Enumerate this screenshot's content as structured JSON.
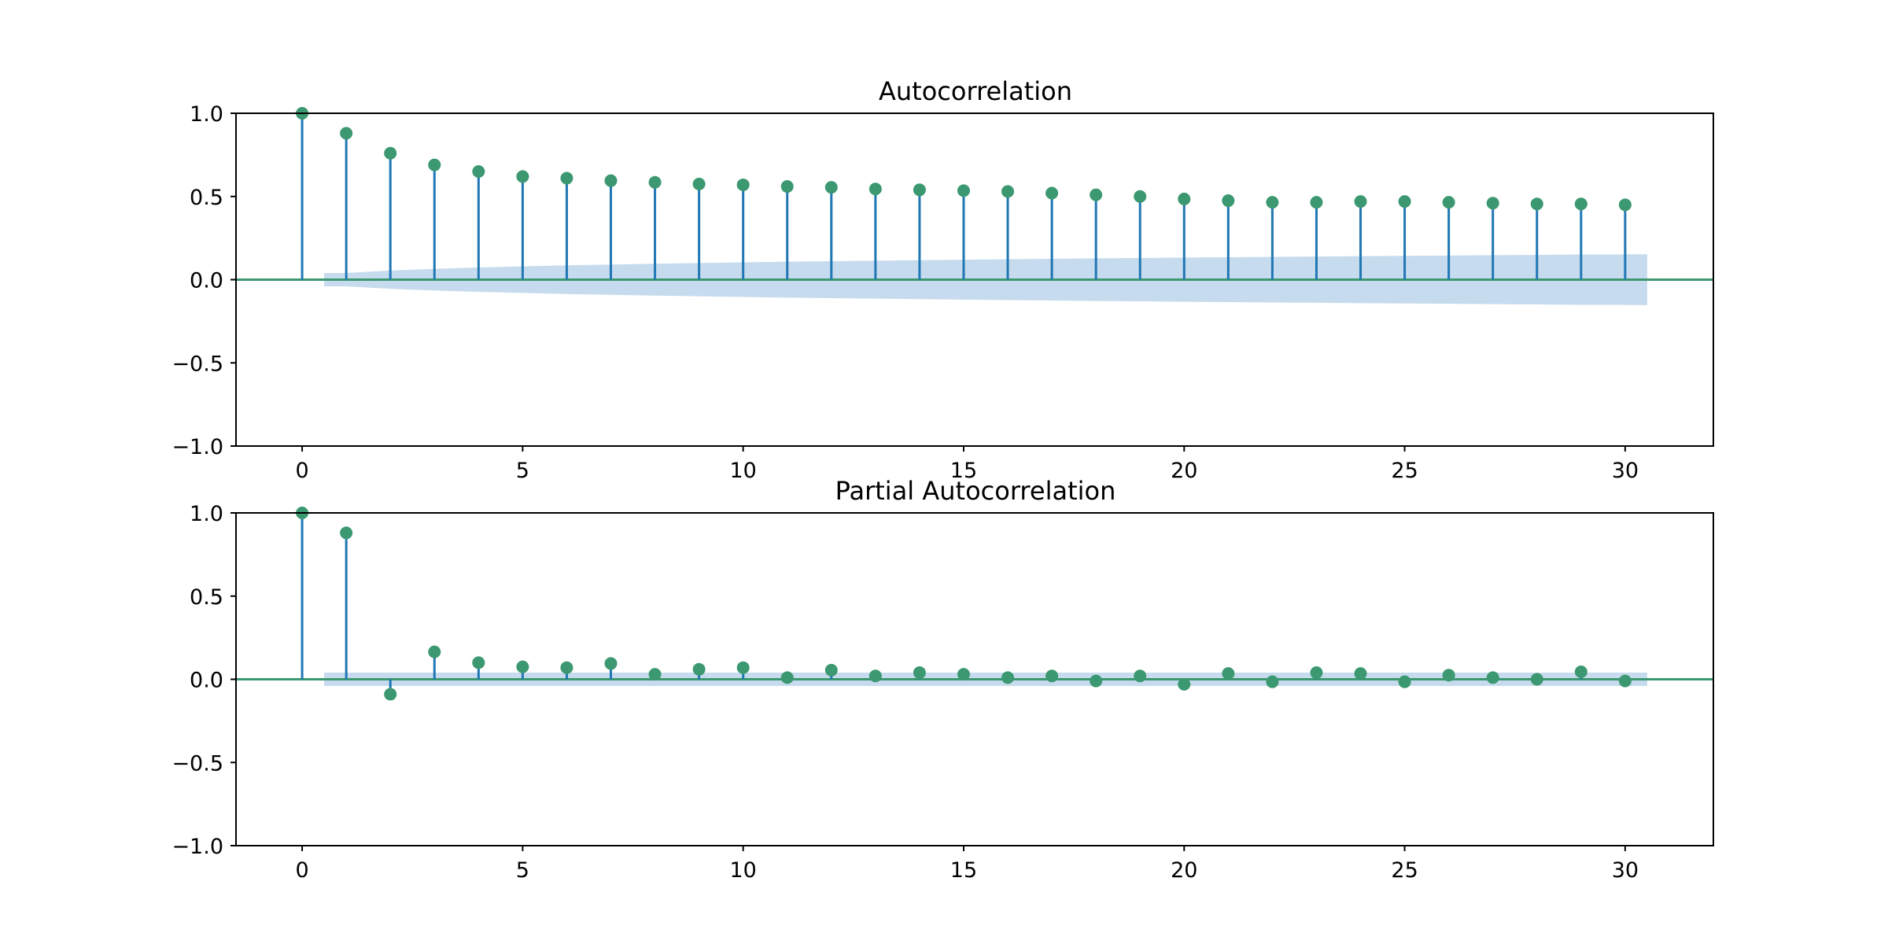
{
  "chart_data": [
    {
      "type": "stem",
      "title": "Autocorrelation",
      "xlim": [
        -1.5,
        32
      ],
      "ylim": [
        -1.0,
        1.0
      ],
      "x_ticks": [
        0,
        5,
        10,
        15,
        20,
        25,
        30
      ],
      "x_tick_labels": [
        "0",
        "5",
        "10",
        "15",
        "20",
        "25",
        "30"
      ],
      "y_ticks": [
        1.0,
        0.5,
        0.0,
        -0.5,
        -1.0
      ],
      "y_tick_labels": [
        "1.0",
        "0.5",
        "0.0",
        "−0.5",
        "−1.0"
      ],
      "lags": [
        0,
        1,
        2,
        3,
        4,
        5,
        6,
        7,
        8,
        9,
        10,
        11,
        12,
        13,
        14,
        15,
        16,
        17,
        18,
        19,
        20,
        21,
        22,
        23,
        24,
        25,
        26,
        27,
        28,
        29,
        30
      ],
      "values": [
        1.0,
        0.88,
        0.76,
        0.69,
        0.65,
        0.62,
        0.61,
        0.595,
        0.585,
        0.575,
        0.57,
        0.56,
        0.555,
        0.545,
        0.54,
        0.535,
        0.53,
        0.52,
        0.51,
        0.5,
        0.485,
        0.475,
        0.465,
        0.465,
        0.47,
        0.47,
        0.465,
        0.46,
        0.455,
        0.455,
        0.45
      ],
      "confint_lags": [
        0.5,
        1,
        2,
        3,
        4,
        5,
        6,
        7,
        8,
        9,
        10,
        11,
        12,
        13,
        14,
        15,
        16,
        17,
        18,
        19,
        20,
        21,
        22,
        23,
        24,
        25,
        26,
        27,
        28,
        29,
        30,
        30.5
      ],
      "confint_half_width": [
        0.04,
        0.04,
        0.055,
        0.065,
        0.073,
        0.08,
        0.086,
        0.091,
        0.096,
        0.1,
        0.104,
        0.108,
        0.111,
        0.114,
        0.117,
        0.12,
        0.123,
        0.125,
        0.128,
        0.13,
        0.133,
        0.135,
        0.137,
        0.139,
        0.141,
        0.143,
        0.145,
        0.147,
        0.149,
        0.151,
        0.152,
        0.153
      ],
      "grid": false
    },
    {
      "type": "stem",
      "title": "Partial Autocorrelation",
      "xlim": [
        -1.5,
        32
      ],
      "ylim": [
        -1.0,
        1.0
      ],
      "x_ticks": [
        0,
        5,
        10,
        15,
        20,
        25,
        30
      ],
      "x_tick_labels": [
        "0",
        "5",
        "10",
        "15",
        "20",
        "25",
        "30"
      ],
      "y_ticks": [
        1.0,
        0.5,
        0.0,
        -0.5,
        -1.0
      ],
      "y_tick_labels": [
        "1.0",
        "0.5",
        "0.0",
        "−0.5",
        "−1.0"
      ],
      "lags": [
        0,
        1,
        2,
        3,
        4,
        5,
        6,
        7,
        8,
        9,
        10,
        11,
        12,
        13,
        14,
        15,
        16,
        17,
        18,
        19,
        20,
        21,
        22,
        23,
        24,
        25,
        26,
        27,
        28,
        29,
        30
      ],
      "values": [
        1.0,
        0.88,
        -0.09,
        0.165,
        0.1,
        0.075,
        0.07,
        0.095,
        0.03,
        0.06,
        0.07,
        0.01,
        0.055,
        0.02,
        0.04,
        0.03,
        0.01,
        0.02,
        -0.01,
        0.02,
        -0.03,
        0.035,
        -0.015,
        0.04,
        0.035,
        -0.015,
        0.025,
        0.01,
        0.0,
        0.045,
        -0.01
      ],
      "confint_lags": [
        0.5,
        30.5
      ],
      "confint_half_width": [
        0.04,
        0.04
      ],
      "grid": false
    }
  ],
  "colors": {
    "stem": "#1f77b4",
    "marker": "#3b9870",
    "confint": "#c6dbed",
    "zero_line": "#3b9870",
    "axes": "#000000"
  }
}
